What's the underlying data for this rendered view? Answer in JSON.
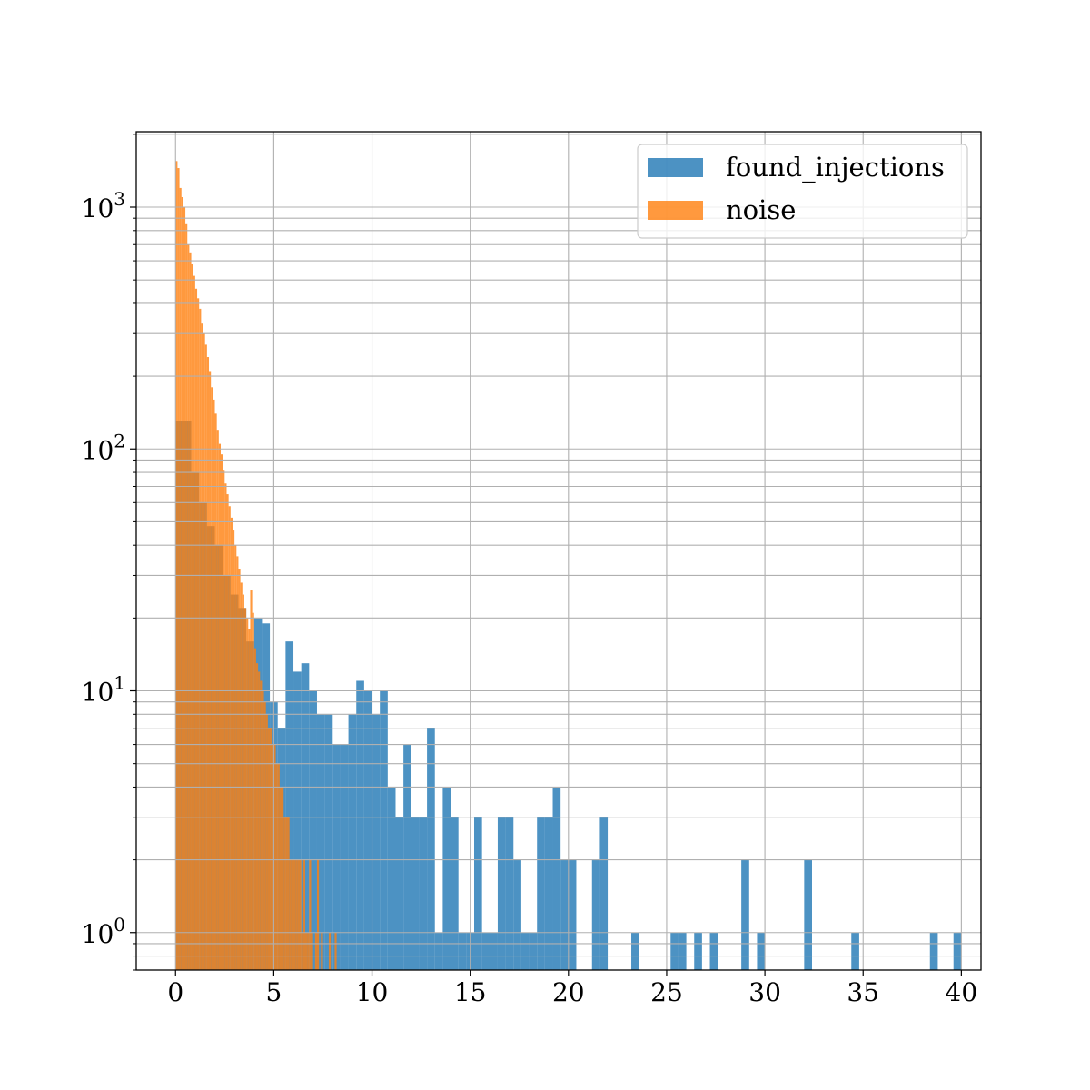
{
  "chart_data": {
    "type": "bar",
    "title": "",
    "xlabel": "",
    "ylabel": "",
    "y_scale": "log",
    "xlim": [
      -2,
      41
    ],
    "ylim": [
      0.7,
      2050
    ],
    "grid": true,
    "legend_position": "top-right",
    "x_ticks": [
      0,
      5,
      10,
      15,
      20,
      25,
      30,
      35,
      40
    ],
    "x_tick_labels": [
      "0",
      "5",
      "10",
      "15",
      "20",
      "25",
      "30",
      "35",
      "40"
    ],
    "y_ticks": [
      1,
      10,
      100,
      1000
    ],
    "y_tick_labels": [
      {
        "base": "10",
        "exp": "0"
      },
      {
        "base": "10",
        "exp": "1"
      },
      {
        "base": "10",
        "exp": "2"
      },
      {
        "base": "10",
        "exp": "3"
      }
    ],
    "series": [
      {
        "name": "found_injections",
        "color": "#1f77b4",
        "opacity": 0.8,
        "bin_width": 0.4,
        "bins": [
          [
            0,
            130
          ],
          [
            0.4,
            130
          ],
          [
            0.8,
            80
          ],
          [
            1.2,
            60
          ],
          [
            1.6,
            48
          ],
          [
            2.0,
            40
          ],
          [
            2.4,
            30
          ],
          [
            2.8,
            25
          ],
          [
            3.2,
            22
          ],
          [
            3.6,
            16
          ],
          [
            4.0,
            20
          ],
          [
            4.4,
            19
          ],
          [
            4.8,
            9
          ],
          [
            5.2,
            7
          ],
          [
            5.6,
            16
          ],
          [
            6.0,
            12
          ],
          [
            6.4,
            13
          ],
          [
            6.8,
            10
          ],
          [
            7.2,
            8
          ],
          [
            7.6,
            8
          ],
          [
            8.0,
            6
          ],
          [
            8.4,
            6
          ],
          [
            8.8,
            8
          ],
          [
            9.2,
            11
          ],
          [
            9.6,
            10
          ],
          [
            10.0,
            8
          ],
          [
            10.4,
            10
          ],
          [
            10.8,
            4
          ],
          [
            11.2,
            3
          ],
          [
            11.6,
            6
          ],
          [
            12.0,
            3
          ],
          [
            12.4,
            3
          ],
          [
            12.8,
            7
          ],
          [
            13.2,
            1
          ],
          [
            13.6,
            4
          ],
          [
            14.0,
            3
          ],
          [
            14.4,
            1
          ],
          [
            14.8,
            1
          ],
          [
            15.2,
            3
          ],
          [
            15.6,
            1
          ],
          [
            16.0,
            1
          ],
          [
            16.4,
            3
          ],
          [
            16.8,
            3
          ],
          [
            17.2,
            2
          ],
          [
            17.6,
            1
          ],
          [
            18.0,
            1
          ],
          [
            18.4,
            3
          ],
          [
            18.8,
            3
          ],
          [
            19.2,
            4
          ],
          [
            19.6,
            2
          ],
          [
            20.0,
            2
          ],
          [
            21.2,
            2
          ],
          [
            21.6,
            3
          ],
          [
            23.2,
            1
          ],
          [
            25.2,
            1
          ],
          [
            25.6,
            1
          ],
          [
            26.4,
            1
          ],
          [
            27.2,
            1
          ],
          [
            28.8,
            2
          ],
          [
            29.6,
            1
          ],
          [
            32.0,
            2
          ],
          [
            34.4,
            1
          ],
          [
            38.4,
            1
          ],
          [
            39.6,
            1
          ]
        ]
      },
      {
        "name": "noise",
        "color": "#ff7f0e",
        "opacity": 0.8,
        "bin_width": 0.1,
        "bins": [
          [
            0.0,
            1550
          ],
          [
            0.1,
            1450
          ],
          [
            0.2,
            1200
          ],
          [
            0.3,
            1100
          ],
          [
            0.4,
            1000
          ],
          [
            0.5,
            850
          ],
          [
            0.6,
            700
          ],
          [
            0.7,
            650
          ],
          [
            0.8,
            580
          ],
          [
            0.9,
            520
          ],
          [
            1.0,
            460
          ],
          [
            1.1,
            420
          ],
          [
            1.2,
            380
          ],
          [
            1.3,
            330
          ],
          [
            1.4,
            300
          ],
          [
            1.5,
            270
          ],
          [
            1.6,
            240
          ],
          [
            1.7,
            210
          ],
          [
            1.8,
            180
          ],
          [
            1.9,
            160
          ],
          [
            2.0,
            140
          ],
          [
            2.1,
            120
          ],
          [
            2.2,
            105
          ],
          [
            2.3,
            95
          ],
          [
            2.4,
            82
          ],
          [
            2.5,
            72
          ],
          [
            2.6,
            65
          ],
          [
            2.7,
            58
          ],
          [
            2.8,
            52
          ],
          [
            2.9,
            46
          ],
          [
            3.0,
            40
          ],
          [
            3.1,
            36
          ],
          [
            3.2,
            32
          ],
          [
            3.3,
            28
          ],
          [
            3.4,
            25
          ],
          [
            3.5,
            22
          ],
          [
            3.6,
            20
          ],
          [
            3.7,
            18
          ],
          [
            3.8,
            26
          ],
          [
            3.9,
            21
          ],
          [
            4.0,
            15
          ],
          [
            4.1,
            13
          ],
          [
            4.2,
            12
          ],
          [
            4.3,
            11
          ],
          [
            4.4,
            10
          ],
          [
            4.5,
            9
          ],
          [
            4.6,
            8
          ],
          [
            4.7,
            7
          ],
          [
            4.8,
            7
          ],
          [
            4.9,
            6
          ],
          [
            5.0,
            6
          ],
          [
            5.1,
            5
          ],
          [
            5.2,
            5
          ],
          [
            5.3,
            4
          ],
          [
            5.4,
            4
          ],
          [
            5.5,
            3
          ],
          [
            5.6,
            3
          ],
          [
            5.7,
            3
          ],
          [
            5.8,
            2
          ],
          [
            5.9,
            2
          ],
          [
            6.0,
            2
          ],
          [
            6.1,
            2
          ],
          [
            6.2,
            2
          ],
          [
            6.3,
            2
          ],
          [
            6.4,
            1
          ],
          [
            6.5,
            2
          ],
          [
            6.6,
            1
          ],
          [
            6.7,
            1
          ],
          [
            6.8,
            2
          ],
          [
            6.9,
            1
          ],
          [
            7.1,
            1
          ],
          [
            7.2,
            2
          ],
          [
            7.4,
            1
          ],
          [
            7.8,
            1
          ],
          [
            8.1,
            1
          ]
        ]
      }
    ]
  }
}
